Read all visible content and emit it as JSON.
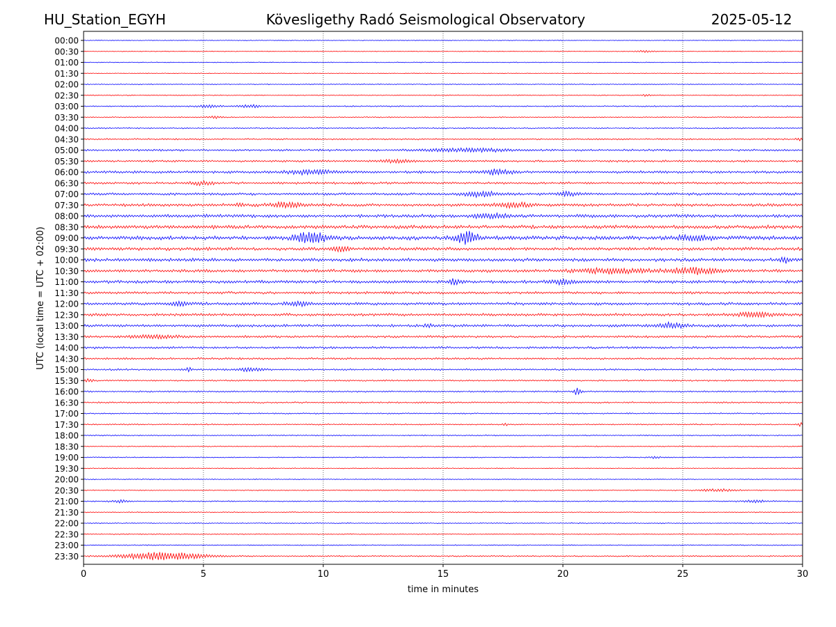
{
  "header": {
    "station": "HU_Station_EGYH",
    "observatory": "Kövesligethy Radó Seismological Observatory",
    "date": "2025-05-12"
  },
  "chart_data": {
    "type": "line",
    "title": "Kövesligethy Radó Seismological Observatory",
    "xlabel": "time in minutes",
    "ylabel": "UTC (local time = UTC + 02:00)",
    "xlim": [
      0,
      30
    ],
    "x_ticks": [
      "0",
      "5",
      "10",
      "15",
      "20",
      "25",
      "30"
    ],
    "x_grid": true,
    "colors": {
      "even_row": "#0000ff",
      "odd_row": "#ff0000"
    },
    "rows": [
      {
        "label": "00:00",
        "noise": 0.5,
        "events": []
      },
      {
        "label": "00:30",
        "noise": 0.5,
        "events": [
          {
            "t": 23.4,
            "amp": 1.2,
            "dur": 0.8
          }
        ]
      },
      {
        "label": "01:00",
        "noise": 0.6,
        "events": []
      },
      {
        "label": "01:30",
        "noise": 0.5,
        "events": []
      },
      {
        "label": "02:00",
        "noise": 0.7,
        "events": []
      },
      {
        "label": "02:30",
        "noise": 0.7,
        "events": [
          {
            "t": 23.5,
            "amp": 1.2,
            "dur": 0.4
          }
        ]
      },
      {
        "label": "03:00",
        "noise": 1.0,
        "events": [
          {
            "t": 5.2,
            "amp": 1.6,
            "dur": 1.0
          },
          {
            "t": 7.0,
            "amp": 2.0,
            "dur": 1.0
          }
        ]
      },
      {
        "label": "03:30",
        "noise": 0.8,
        "events": [
          {
            "t": 5.5,
            "amp": 1.4,
            "dur": 0.6
          }
        ]
      },
      {
        "label": "04:00",
        "noise": 1.0,
        "events": []
      },
      {
        "label": "04:30",
        "noise": 1.2,
        "events": [
          {
            "t": 29.9,
            "amp": 2.5,
            "dur": 0.3
          }
        ]
      },
      {
        "label": "05:00",
        "noise": 1.6,
        "events": [
          {
            "t": 16.0,
            "amp": 2.2,
            "dur": 3.5
          }
        ]
      },
      {
        "label": "05:30",
        "noise": 1.6,
        "events": [
          {
            "t": 13.0,
            "amp": 2.0,
            "dur": 1.5
          }
        ]
      },
      {
        "label": "06:00",
        "noise": 2.0,
        "events": [
          {
            "t": 9.5,
            "amp": 2.8,
            "dur": 2.0
          },
          {
            "t": 17.3,
            "amp": 3.2,
            "dur": 1.2
          }
        ]
      },
      {
        "label": "06:30",
        "noise": 1.8,
        "events": [
          {
            "t": 5.0,
            "amp": 2.2,
            "dur": 1.0
          }
        ]
      },
      {
        "label": "07:00",
        "noise": 2.0,
        "events": [
          {
            "t": 16.5,
            "amp": 3.0,
            "dur": 1.6
          },
          {
            "t": 20.2,
            "amp": 2.2,
            "dur": 1.0
          }
        ]
      },
      {
        "label": "07:30",
        "noise": 2.4,
        "events": [
          {
            "t": 6.5,
            "amp": 3.0,
            "dur": 0.3
          },
          {
            "t": 8.5,
            "amp": 3.0,
            "dur": 1.5
          },
          {
            "t": 18.0,
            "amp": 3.0,
            "dur": 1.5
          }
        ]
      },
      {
        "label": "08:00",
        "noise": 2.6,
        "events": [
          {
            "t": 17.0,
            "amp": 3.0,
            "dur": 1.5
          }
        ]
      },
      {
        "label": "08:30",
        "noise": 2.8,
        "events": []
      },
      {
        "label": "09:00",
        "noise": 3.2,
        "events": [
          {
            "t": 9.5,
            "amp": 7.5,
            "dur": 1.3
          },
          {
            "t": 16.0,
            "amp": 8.0,
            "dur": 0.9
          },
          {
            "t": 25.5,
            "amp": 3.2,
            "dur": 1.5
          }
        ]
      },
      {
        "label": "09:30",
        "noise": 2.6,
        "events": [
          {
            "t": 10.7,
            "amp": 3.0,
            "dur": 0.7
          }
        ]
      },
      {
        "label": "10:00",
        "noise": 2.6,
        "events": [
          {
            "t": 29.3,
            "amp": 3.2,
            "dur": 0.5
          }
        ]
      },
      {
        "label": "10:30",
        "noise": 2.4,
        "events": [
          {
            "t": 22.0,
            "amp": 3.0,
            "dur": 3.0
          },
          {
            "t": 25.5,
            "amp": 4.0,
            "dur": 2.0
          }
        ]
      },
      {
        "label": "11:00",
        "noise": 2.4,
        "events": [
          {
            "t": 15.5,
            "amp": 3.0,
            "dur": 0.5
          },
          {
            "t": 20.0,
            "amp": 3.0,
            "dur": 1.0
          }
        ]
      },
      {
        "label": "11:30",
        "noise": 2.0,
        "events": []
      },
      {
        "label": "12:00",
        "noise": 2.2,
        "events": [
          {
            "t": 4.0,
            "amp": 2.8,
            "dur": 1.0
          },
          {
            "t": 9.0,
            "amp": 2.8,
            "dur": 1.0
          }
        ]
      },
      {
        "label": "12:30",
        "noise": 2.2,
        "events": [
          {
            "t": 28.0,
            "amp": 3.4,
            "dur": 1.5
          }
        ]
      },
      {
        "label": "13:00",
        "noise": 2.2,
        "events": [
          {
            "t": 14.4,
            "amp": 3.0,
            "dur": 0.3
          },
          {
            "t": 24.5,
            "amp": 3.2,
            "dur": 1.2
          }
        ]
      },
      {
        "label": "13:30",
        "noise": 1.8,
        "events": [
          {
            "t": 3.0,
            "amp": 2.2,
            "dur": 2.0
          }
        ]
      },
      {
        "label": "14:00",
        "noise": 1.8,
        "events": []
      },
      {
        "label": "14:30",
        "noise": 1.6,
        "events": []
      },
      {
        "label": "15:00",
        "noise": 1.4,
        "events": [
          {
            "t": 4.4,
            "amp": 3.0,
            "dur": 0.2
          },
          {
            "t": 7.0,
            "amp": 2.4,
            "dur": 1.0
          }
        ]
      },
      {
        "label": "15:30",
        "noise": 1.2,
        "events": [
          {
            "t": 0.2,
            "amp": 2.0,
            "dur": 0.4
          }
        ]
      },
      {
        "label": "16:00",
        "noise": 1.2,
        "events": [
          {
            "t": 20.6,
            "amp": 4.5,
            "dur": 0.3
          }
        ]
      },
      {
        "label": "16:30",
        "noise": 1.2,
        "events": []
      },
      {
        "label": "17:00",
        "noise": 1.0,
        "events": []
      },
      {
        "label": "17:30",
        "noise": 1.0,
        "events": [
          {
            "t": 17.6,
            "amp": 2.0,
            "dur": 0.2
          },
          {
            "t": 29.9,
            "amp": 3.0,
            "dur": 0.2
          }
        ]
      },
      {
        "label": "18:00",
        "noise": 0.9,
        "events": []
      },
      {
        "label": "18:30",
        "noise": 0.8,
        "events": []
      },
      {
        "label": "19:00",
        "noise": 0.8,
        "events": [
          {
            "t": 23.8,
            "amp": 1.4,
            "dur": 0.5
          }
        ]
      },
      {
        "label": "19:30",
        "noise": 0.7,
        "events": []
      },
      {
        "label": "20:00",
        "noise": 0.7,
        "events": []
      },
      {
        "label": "20:30",
        "noise": 0.8,
        "events": [
          {
            "t": 26.5,
            "amp": 1.6,
            "dur": 1.6
          }
        ]
      },
      {
        "label": "21:00",
        "noise": 0.9,
        "events": [
          {
            "t": 1.5,
            "amp": 1.6,
            "dur": 0.8
          },
          {
            "t": 28.0,
            "amp": 1.4,
            "dur": 1.2
          }
        ]
      },
      {
        "label": "21:30",
        "noise": 0.7,
        "events": []
      },
      {
        "label": "22:00",
        "noise": 0.8,
        "events": []
      },
      {
        "label": "22:30",
        "noise": 0.8,
        "events": []
      },
      {
        "label": "23:00",
        "noise": 0.8,
        "events": []
      },
      {
        "label": "23:30",
        "noise": 1.0,
        "events": [
          {
            "t": 3.3,
            "amp": 5.5,
            "dur": 3.5
          }
        ]
      }
    ]
  }
}
